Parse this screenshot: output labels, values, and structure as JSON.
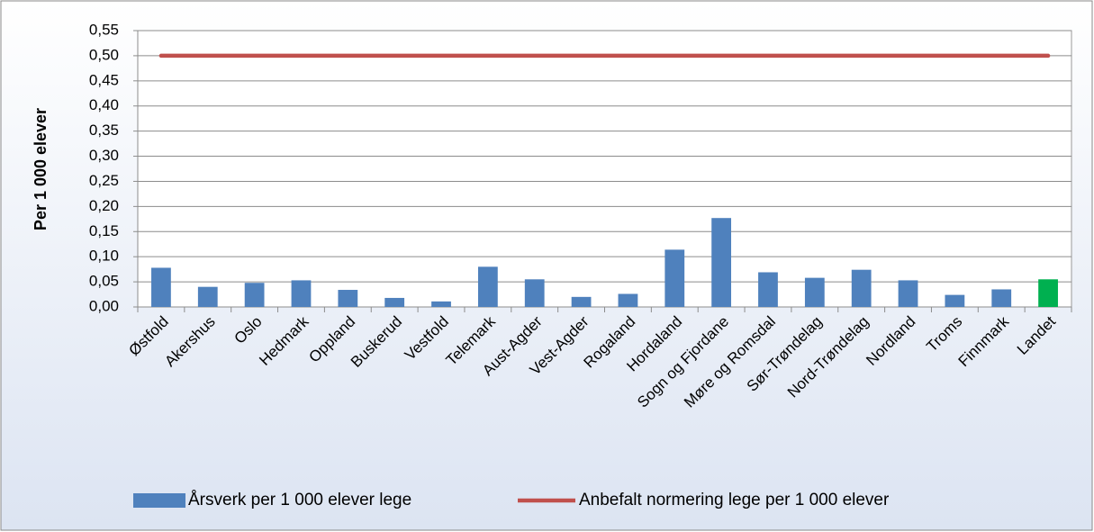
{
  "chart_data": {
    "type": "bar",
    "y_label": "Per 1 000 elever",
    "categories": [
      "Østfold",
      "Akershus",
      "Oslo",
      "Hedmark",
      "Oppland",
      "Buskerud",
      "Vestfold",
      "Telemark",
      "Aust-Agder",
      "Vest-Agder",
      "Rogaland",
      "Hordaland",
      "Sogn og Fjordane",
      "Møre og Romsdal",
      "Sør-Trøndelag",
      "Nord-Trøndelag",
      "Nordland",
      "Troms",
      "Finnmark",
      "Landet"
    ],
    "series": [
      {
        "name": "Årsverk per 1 000 elever lege",
        "type": "bar",
        "color": "#4f81bd",
        "colors": [
          "#4f81bd",
          "#4f81bd",
          "#4f81bd",
          "#4f81bd",
          "#4f81bd",
          "#4f81bd",
          "#4f81bd",
          "#4f81bd",
          "#4f81bd",
          "#4f81bd",
          "#4f81bd",
          "#4f81bd",
          "#4f81bd",
          "#4f81bd",
          "#4f81bd",
          "#4f81bd",
          "#4f81bd",
          "#4f81bd",
          "#4f81bd",
          "#00b050"
        ],
        "values": [
          0.078,
          0.04,
          0.048,
          0.053,
          0.034,
          0.018,
          0.011,
          0.08,
          0.055,
          0.02,
          0.026,
          0.114,
          0.177,
          0.069,
          0.058,
          0.074,
          0.053,
          0.024,
          0.035,
          0.055
        ]
      },
      {
        "name": "Anbefalt normering lege per 1 000 elever",
        "type": "line",
        "color": "#c0504d",
        "values": [
          0.5,
          0.5,
          0.5,
          0.5,
          0.5,
          0.5,
          0.5,
          0.5,
          0.5,
          0.5,
          0.5,
          0.5,
          0.5,
          0.5,
          0.5,
          0.5,
          0.5,
          0.5,
          0.5,
          0.5
        ]
      }
    ],
    "ylim": [
      0,
      0.55
    ],
    "yticks": [
      {
        "value": 0,
        "label": "0,00"
      },
      {
        "value": 0.05,
        "label": "0,05"
      },
      {
        "value": 0.1,
        "label": "0,10"
      },
      {
        "value": 0.15,
        "label": "0,15"
      },
      {
        "value": 0.2,
        "label": "0,20"
      },
      {
        "value": 0.25,
        "label": "0,25"
      },
      {
        "value": 0.3,
        "label": "0,30"
      },
      {
        "value": 0.35,
        "label": "0,35"
      },
      {
        "value": 0.4,
        "label": "0,40"
      },
      {
        "value": 0.45,
        "label": "0,45"
      },
      {
        "value": 0.5,
        "label": "0,50"
      },
      {
        "value": 0.55,
        "label": "0,55"
      }
    ],
    "grid": true,
    "legend": "bottom"
  }
}
